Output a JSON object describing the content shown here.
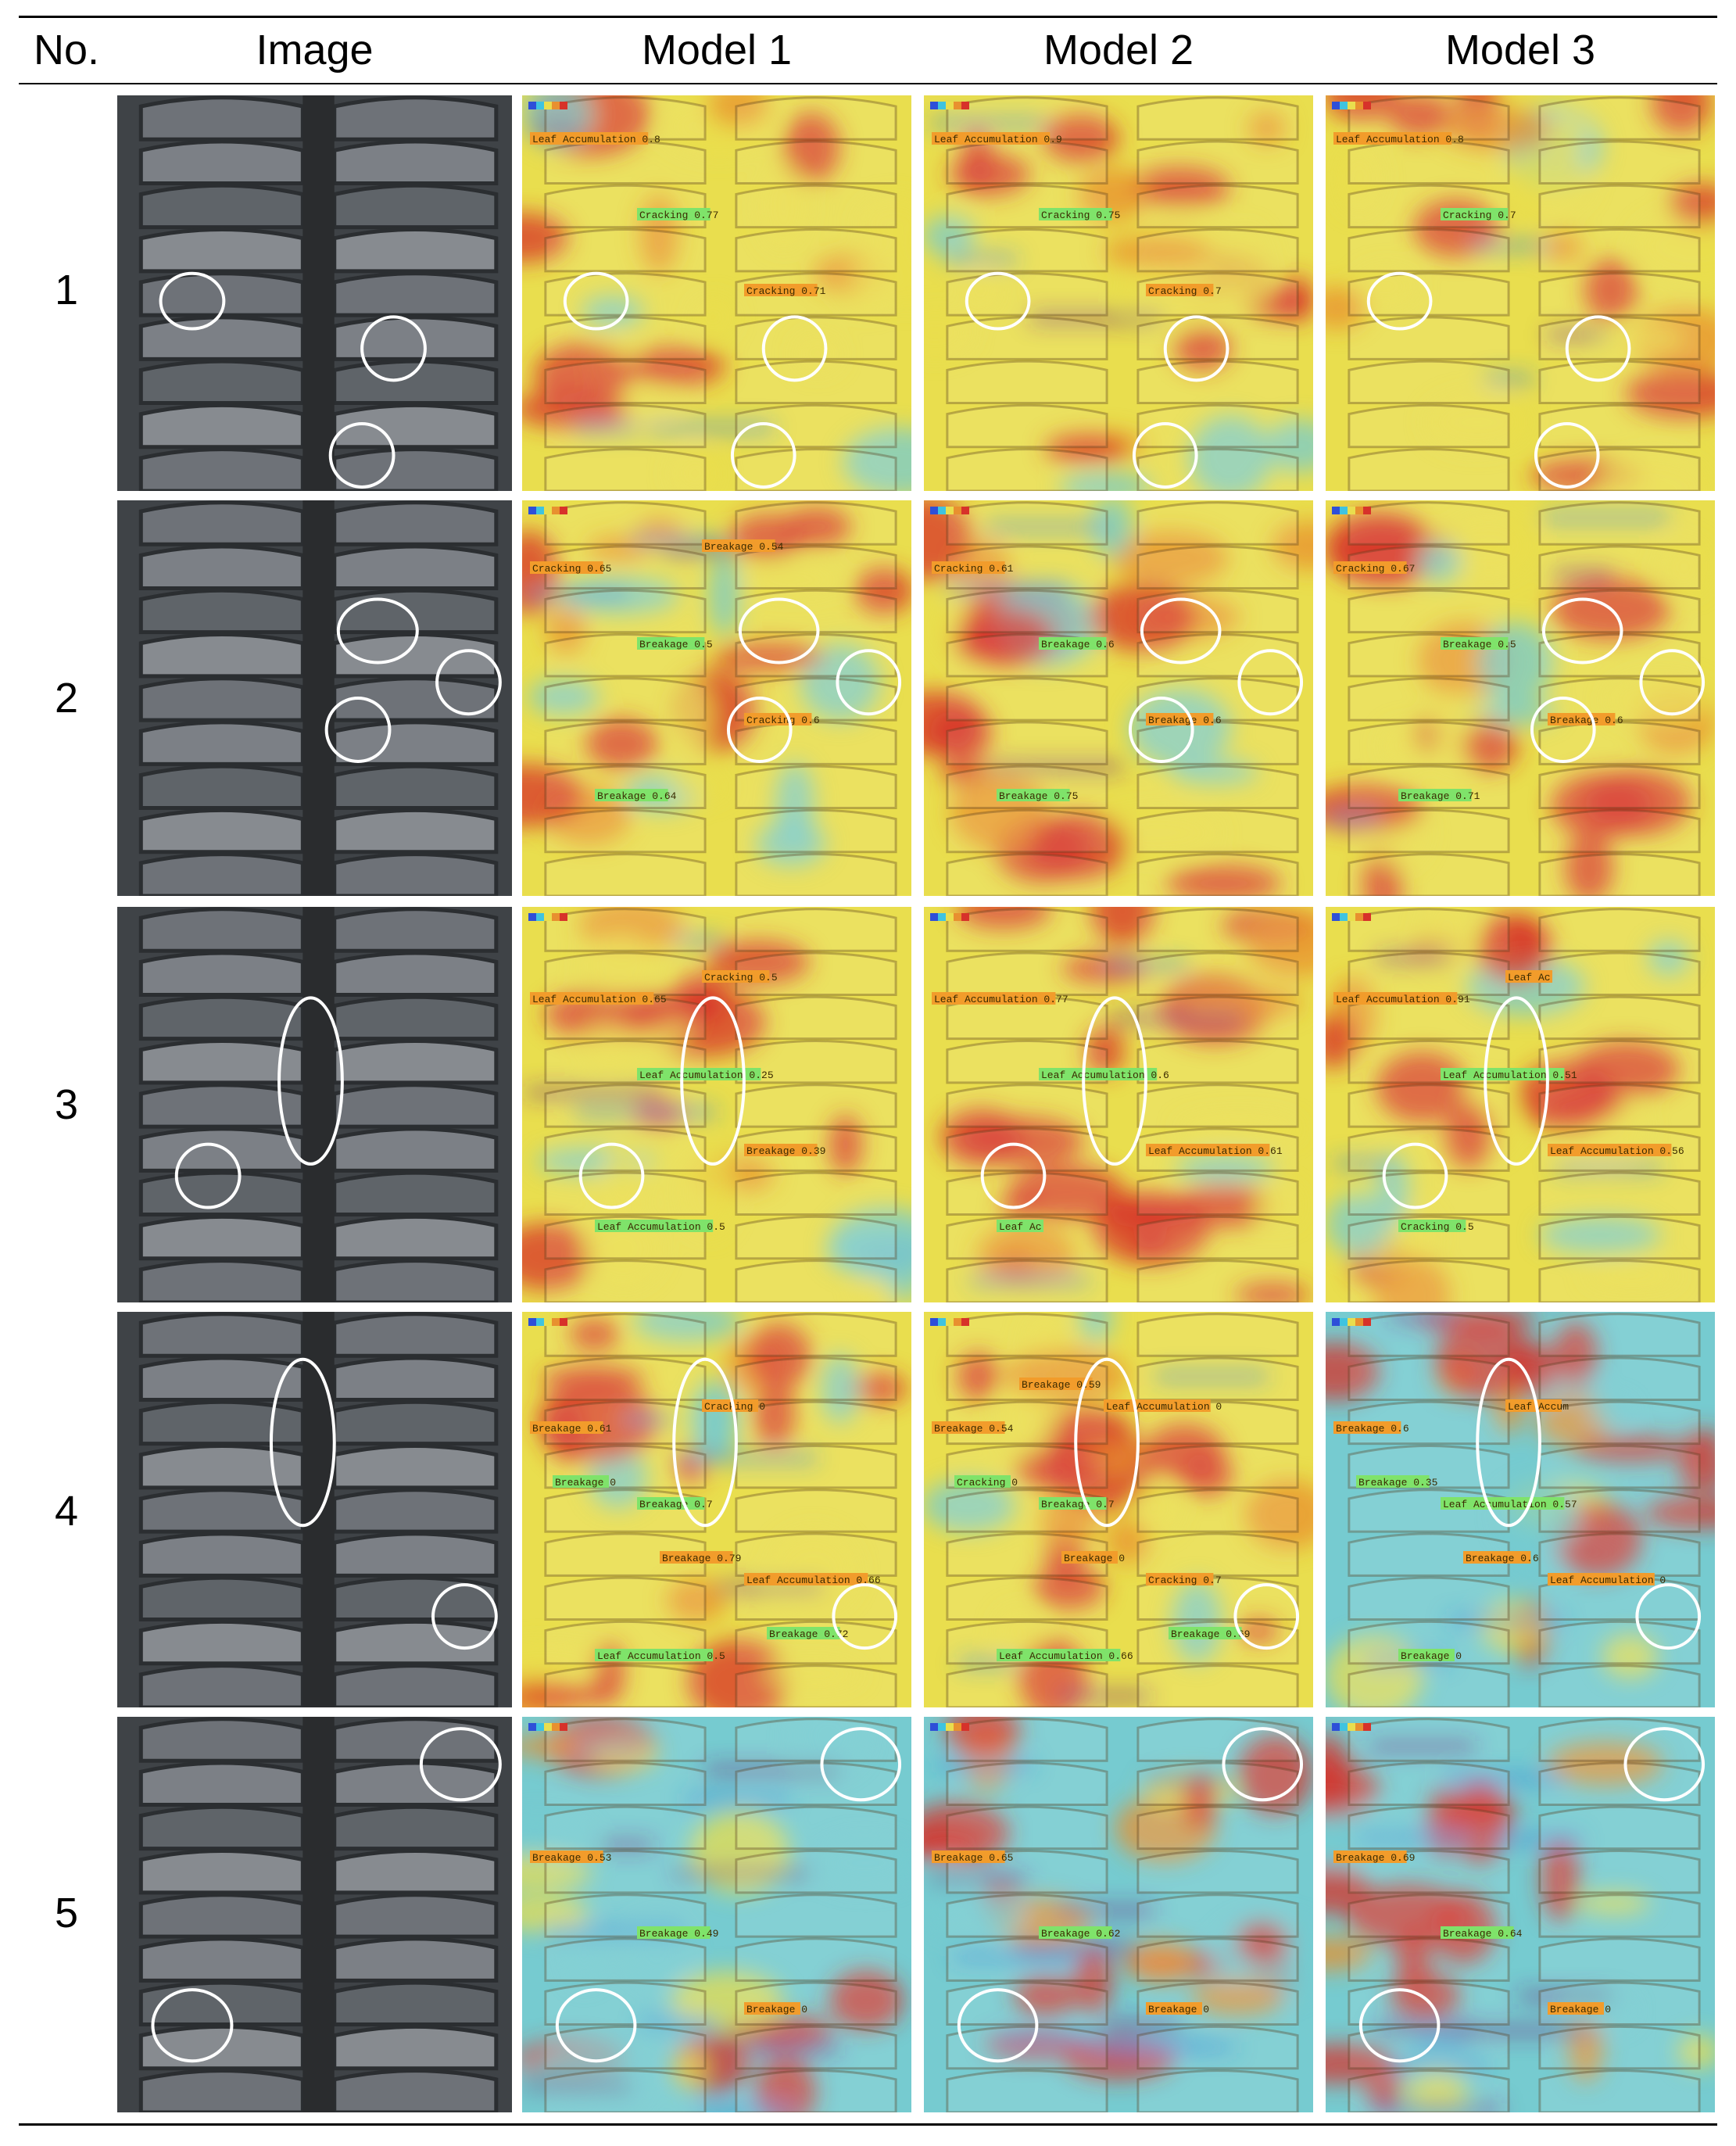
{
  "table": {
    "headers": [
      "No.",
      "Image",
      "Model 1",
      "Model 2",
      "Model 3"
    ],
    "rows": [
      {
        "no": "1",
        "models": [
          {
            "labels": [
              "Leaf Accumulation 0.8",
              "Cracking 0.77",
              "Cracking 0.71"
            ]
          },
          {
            "labels": [
              "Leaf Accumulation 0.9",
              "Cracking 0.75",
              "Cracking 0.7"
            ]
          },
          {
            "labels": [
              "Leaf Accumulation 0.8",
              "Cracking 0.7"
            ]
          }
        ]
      },
      {
        "no": "2",
        "models": [
          {
            "labels": [
              "Cracking 0.65",
              "Breakage 0.5",
              "Cracking 0.6",
              "Breakage 0.64",
              "Breakage 0.54"
            ]
          },
          {
            "labels": [
              "Cracking 0.61",
              "Breakage 0.6",
              "Breakage 0.6",
              "Breakage 0.75"
            ]
          },
          {
            "labels": [
              "Cracking 0.67",
              "Breakage 0.5",
              "Breakage 0.6",
              "Breakage 0.71"
            ]
          }
        ]
      },
      {
        "no": "3",
        "models": [
          {
            "labels": [
              "Leaf Accumulation 0.65",
              "Leaf Accumulation 0.25",
              "Breakage 0.39",
              "Leaf Accumulation 0.5",
              "Cracking 0.5"
            ]
          },
          {
            "labels": [
              "Leaf Accumulation 0.77",
              "Leaf Accumulation 0.6",
              "Leaf Accumulation 0.61",
              "Leaf Ac"
            ]
          },
          {
            "labels": [
              "Leaf Accumulation 0.91",
              "Leaf Accumulation 0.51",
              "Leaf Accumulation 0.56",
              "Cracking 0.5",
              "Leaf Ac"
            ]
          }
        ]
      },
      {
        "no": "4",
        "models": [
          {
            "labels": [
              "Breakage 0.61",
              "Breakage 0.7",
              "Leaf Accumulation 0.66",
              "Leaf Accumulation 0.5",
              "Cracking 0",
              "Breakage 0",
              "Breakage 0.79",
              "Breakage 0.72"
            ]
          },
          {
            "labels": [
              "Breakage 0.54",
              "Breakage 0.7",
              "Cracking 0.7",
              "Leaf Accumulation 0.66",
              "Leaf Accumulation 0",
              "Cracking 0",
              "Breakage 0",
              "Breakage 0.69",
              "Breakage 0.59"
            ]
          },
          {
            "labels": [
              "Breakage 0.6",
              "Leaf Accumulation 0.57",
              "Leaf Accumulation 0",
              "Breakage 0",
              "Leaf Accum",
              "Breakage 0.35",
              "Breakage 0.6"
            ]
          }
        ]
      },
      {
        "no": "5",
        "models": [
          {
            "labels": [
              "Breakage 0.53",
              "Breakage 0.49",
              "Breakage 0"
            ]
          },
          {
            "labels": [
              "Breakage 0.65",
              "Breakage 0.62",
              "Breakage 0"
            ]
          },
          {
            "labels": [
              "Breakage 0.69",
              "Breakage 0.64",
              "Breakage 0"
            ]
          }
        ]
      }
    ]
  },
  "colors": {
    "heat_red": "#d7322a",
    "heat_orange": "#e8902f",
    "heat_yellow": "#e9de4e",
    "heat_cyan": "#76cbd0",
    "heat_blue": "#2e86d8",
    "heat_purple": "#6d2a7d",
    "label_green": "#7fe36a",
    "label_orange": "#f29c2b",
    "circle": "#ffffff"
  }
}
